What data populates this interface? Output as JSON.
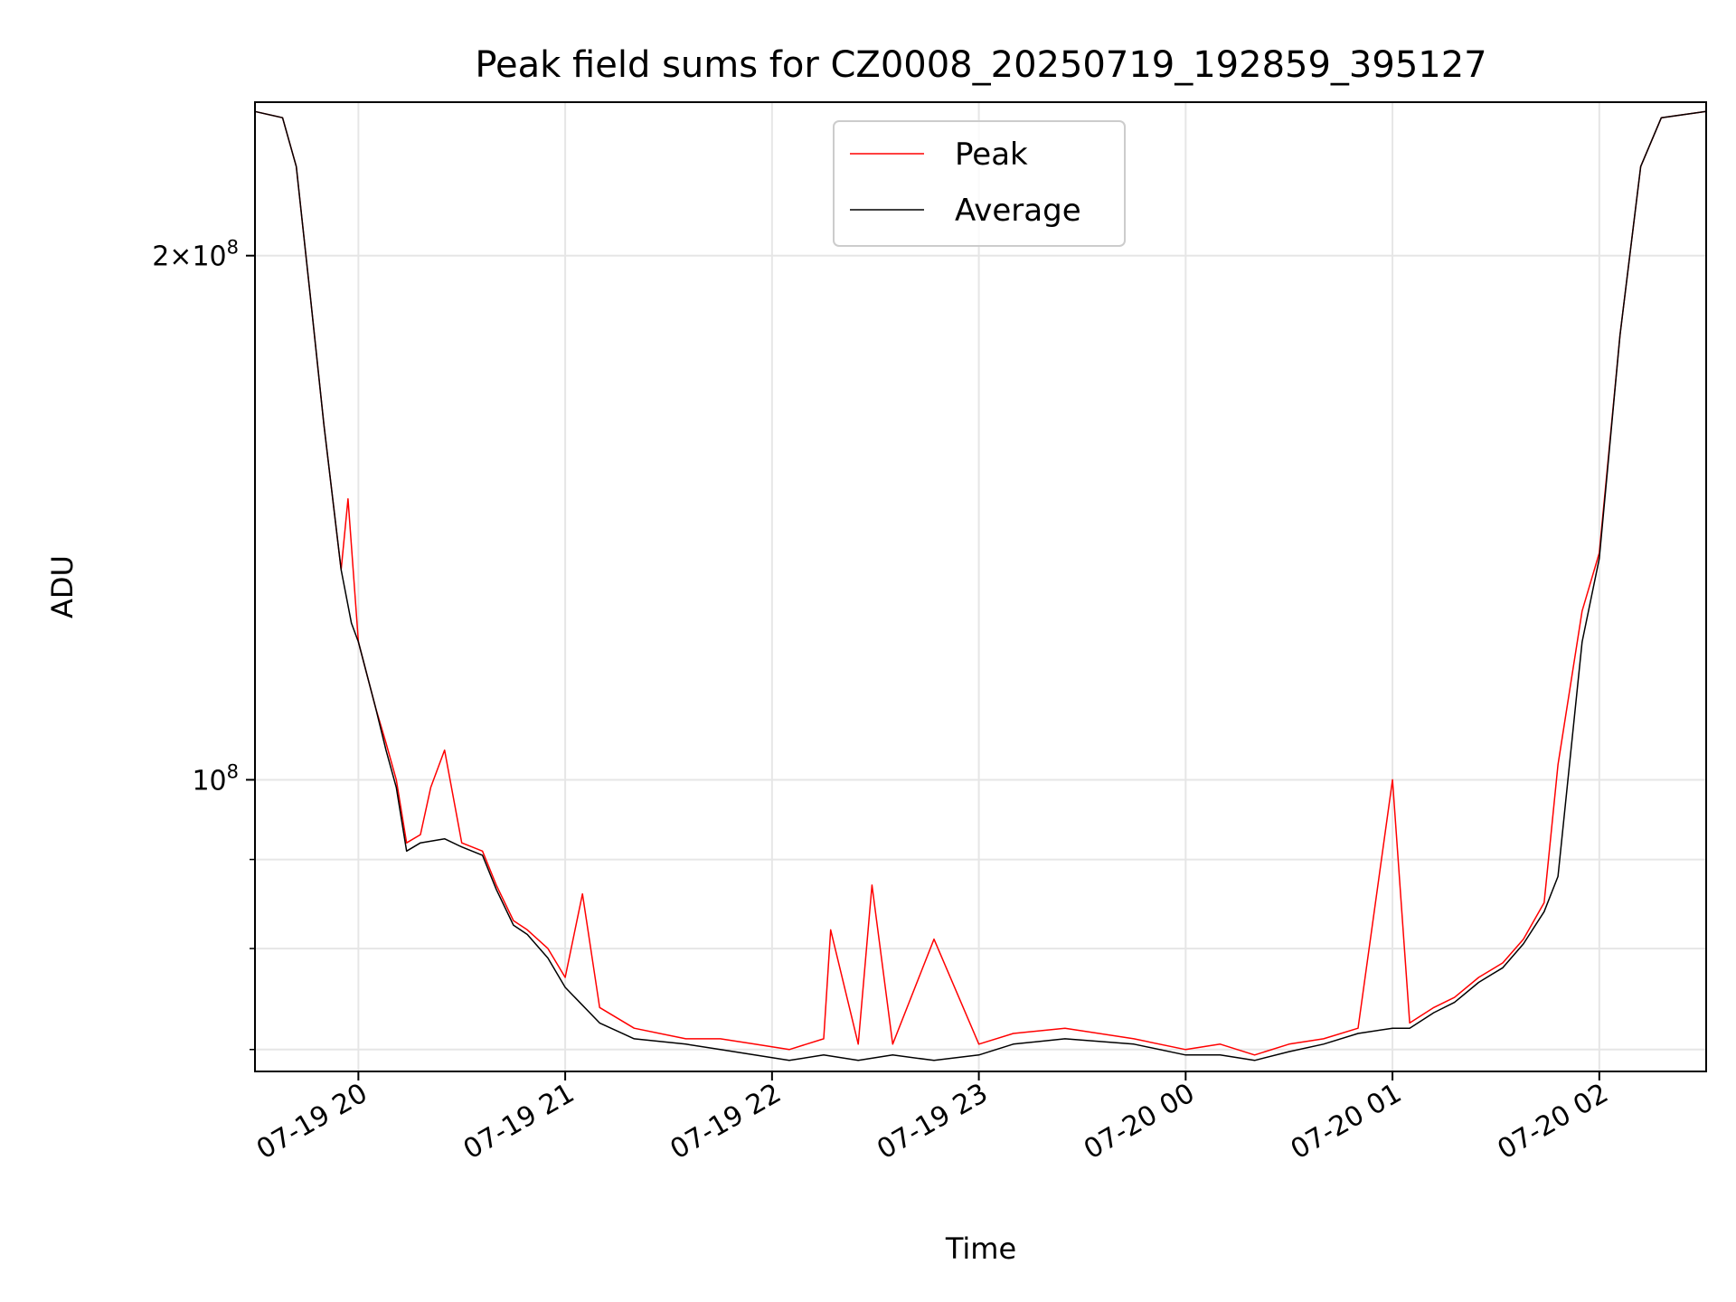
{
  "chart_data": {
    "type": "line",
    "title": "Peak field sums for CZ0008_20250719_192859_395127",
    "xlabel": "Time",
    "ylabel": "ADU",
    "y_scale": "log",
    "x_range": [
      "2025-07-19 19:30",
      "2025-07-20 02:31"
    ],
    "ylim": [
      68000000,
      245000000
    ],
    "x_ticks": [
      {
        "label": "07-19 20",
        "value": "2025-07-19 20:00"
      },
      {
        "label": "07-19 21",
        "value": "2025-07-19 21:00"
      },
      {
        "label": "07-19 22",
        "value": "2025-07-19 22:00"
      },
      {
        "label": "07-19 23",
        "value": "2025-07-19 23:00"
      },
      {
        "label": "07-20 00",
        "value": "2025-07-20 00:00"
      },
      {
        "label": "07-20 01",
        "value": "2025-07-20 01:00"
      },
      {
        "label": "07-20 02",
        "value": "2025-07-20 02:00"
      }
    ],
    "y_major_ticks": [
      {
        "value": 100000000,
        "base": "10",
        "exp": "8"
      },
      {
        "value": 200000000,
        "coef": "2",
        "base": "10",
        "exp": "8"
      }
    ],
    "y_minor_ticks": [
      70000000,
      80000000,
      90000000
    ],
    "grid": true,
    "legend": {
      "position": "top-center",
      "entries": [
        "Peak",
        "Average"
      ]
    },
    "series": [
      {
        "name": "Peak",
        "color": "#ff0000",
        "points": [
          [
            "2025-07-19 19:30",
            242000000
          ],
          [
            "2025-07-19 19:38",
            240000000
          ],
          [
            "2025-07-19 19:42",
            225000000
          ],
          [
            "2025-07-19 19:46",
            190000000
          ],
          [
            "2025-07-19 19:50",
            160000000
          ],
          [
            "2025-07-19 19:55",
            132000000
          ],
          [
            "2025-07-19 19:57",
            145000000
          ],
          [
            "2025-07-19 20:00",
            120000000
          ],
          [
            "2025-07-19 20:05",
            110000000
          ],
          [
            "2025-07-19 20:08",
            105000000
          ],
          [
            "2025-07-19 20:11",
            100000000
          ],
          [
            "2025-07-19 20:14",
            92000000
          ],
          [
            "2025-07-19 20:18",
            93000000
          ],
          [
            "2025-07-19 20:21",
            99000000
          ],
          [
            "2025-07-19 20:25",
            104000000
          ],
          [
            "2025-07-19 20:30",
            92000000
          ],
          [
            "2025-07-19 20:36",
            91000000
          ],
          [
            "2025-07-19 20:40",
            87000000
          ],
          [
            "2025-07-19 20:45",
            83000000
          ],
          [
            "2025-07-19 20:49",
            82000000
          ],
          [
            "2025-07-19 20:55",
            80000000
          ],
          [
            "2025-07-19 21:00",
            77000000
          ],
          [
            "2025-07-19 21:05",
            86000000
          ],
          [
            "2025-07-19 21:10",
            74000000
          ],
          [
            "2025-07-19 21:20",
            72000000
          ],
          [
            "2025-07-19 21:35",
            71000000
          ],
          [
            "2025-07-19 21:45",
            71000000
          ],
          [
            "2025-07-19 21:55",
            70500000
          ],
          [
            "2025-07-19 22:05",
            70000000
          ],
          [
            "2025-07-19 22:15",
            71000000
          ],
          [
            "2025-07-19 22:17",
            82000000
          ],
          [
            "2025-07-19 22:25",
            70500000
          ],
          [
            "2025-07-19 22:29",
            87000000
          ],
          [
            "2025-07-19 22:35",
            70500000
          ],
          [
            "2025-07-19 22:47",
            81000000
          ],
          [
            "2025-07-19 23:00",
            70500000
          ],
          [
            "2025-07-19 23:10",
            71500000
          ],
          [
            "2025-07-19 23:25",
            72000000
          ],
          [
            "2025-07-19 23:45",
            71000000
          ],
          [
            "2025-07-20 00:00",
            70000000
          ],
          [
            "2025-07-20 00:10",
            70500000
          ],
          [
            "2025-07-20 00:20",
            69500000
          ],
          [
            "2025-07-20 00:30",
            70500000
          ],
          [
            "2025-07-20 00:40",
            71000000
          ],
          [
            "2025-07-20 00:50",
            72000000
          ],
          [
            "2025-07-20 01:00",
            100000000
          ],
          [
            "2025-07-20 01:05",
            72500000
          ],
          [
            "2025-07-20 01:12",
            74000000
          ],
          [
            "2025-07-20 01:18",
            75000000
          ],
          [
            "2025-07-20 01:25",
            77000000
          ],
          [
            "2025-07-20 01:32",
            78500000
          ],
          [
            "2025-07-20 01:38",
            81000000
          ],
          [
            "2025-07-20 01:44",
            85000000
          ],
          [
            "2025-07-20 01:48",
            102000000
          ],
          [
            "2025-07-20 01:55",
            125000000
          ],
          [
            "2025-07-20 02:00",
            135000000
          ],
          [
            "2025-07-20 02:06",
            180000000
          ],
          [
            "2025-07-20 02:12",
            225000000
          ],
          [
            "2025-07-20 02:18",
            240000000
          ],
          [
            "2025-07-20 02:31",
            242000000
          ]
        ]
      },
      {
        "name": "Average",
        "color": "#000000",
        "points": [
          [
            "2025-07-19 19:30",
            242000000
          ],
          [
            "2025-07-19 19:38",
            240000000
          ],
          [
            "2025-07-19 19:42",
            225000000
          ],
          [
            "2025-07-19 19:46",
            190000000
          ],
          [
            "2025-07-19 19:50",
            160000000
          ],
          [
            "2025-07-19 19:55",
            132000000
          ],
          [
            "2025-07-19 19:58",
            123000000
          ],
          [
            "2025-07-19 20:00",
            120000000
          ],
          [
            "2025-07-19 20:05",
            110000000
          ],
          [
            "2025-07-19 20:08",
            104000000
          ],
          [
            "2025-07-19 20:11",
            99000000
          ],
          [
            "2025-07-19 20:14",
            91000000
          ],
          [
            "2025-07-19 20:18",
            92000000
          ],
          [
            "2025-07-19 20:25",
            92500000
          ],
          [
            "2025-07-19 20:30",
            91500000
          ],
          [
            "2025-07-19 20:36",
            90500000
          ],
          [
            "2025-07-19 20:40",
            86500000
          ],
          [
            "2025-07-19 20:45",
            82500000
          ],
          [
            "2025-07-19 20:49",
            81500000
          ],
          [
            "2025-07-19 20:55",
            79000000
          ],
          [
            "2025-07-19 21:00",
            76000000
          ],
          [
            "2025-07-19 21:10",
            72500000
          ],
          [
            "2025-07-19 21:20",
            71000000
          ],
          [
            "2025-07-19 21:35",
            70500000
          ],
          [
            "2025-07-19 21:45",
            70000000
          ],
          [
            "2025-07-19 21:55",
            69500000
          ],
          [
            "2025-07-19 22:05",
            69000000
          ],
          [
            "2025-07-19 22:15",
            69500000
          ],
          [
            "2025-07-19 22:25",
            69000000
          ],
          [
            "2025-07-19 22:35",
            69500000
          ],
          [
            "2025-07-19 22:47",
            69000000
          ],
          [
            "2025-07-19 23:00",
            69500000
          ],
          [
            "2025-07-19 23:10",
            70500000
          ],
          [
            "2025-07-19 23:25",
            71000000
          ],
          [
            "2025-07-19 23:45",
            70500000
          ],
          [
            "2025-07-20 00:00",
            69500000
          ],
          [
            "2025-07-20 00:10",
            69500000
          ],
          [
            "2025-07-20 00:20",
            69000000
          ],
          [
            "2025-07-20 00:30",
            69800000
          ],
          [
            "2025-07-20 00:40",
            70500000
          ],
          [
            "2025-07-20 00:50",
            71500000
          ],
          [
            "2025-07-20 01:00",
            72000000
          ],
          [
            "2025-07-20 01:05",
            72000000
          ],
          [
            "2025-07-20 01:12",
            73500000
          ],
          [
            "2025-07-20 01:18",
            74500000
          ],
          [
            "2025-07-20 01:25",
            76500000
          ],
          [
            "2025-07-20 01:32",
            78000000
          ],
          [
            "2025-07-20 01:38",
            80500000
          ],
          [
            "2025-07-20 01:44",
            84000000
          ],
          [
            "2025-07-20 01:48",
            88000000
          ],
          [
            "2025-07-20 01:55",
            120000000
          ],
          [
            "2025-07-20 02:00",
            134000000
          ],
          [
            "2025-07-20 02:06",
            180000000
          ],
          [
            "2025-07-20 02:12",
            225000000
          ],
          [
            "2025-07-20 02:18",
            240000000
          ],
          [
            "2025-07-20 02:31",
            242000000
          ]
        ]
      }
    ]
  }
}
